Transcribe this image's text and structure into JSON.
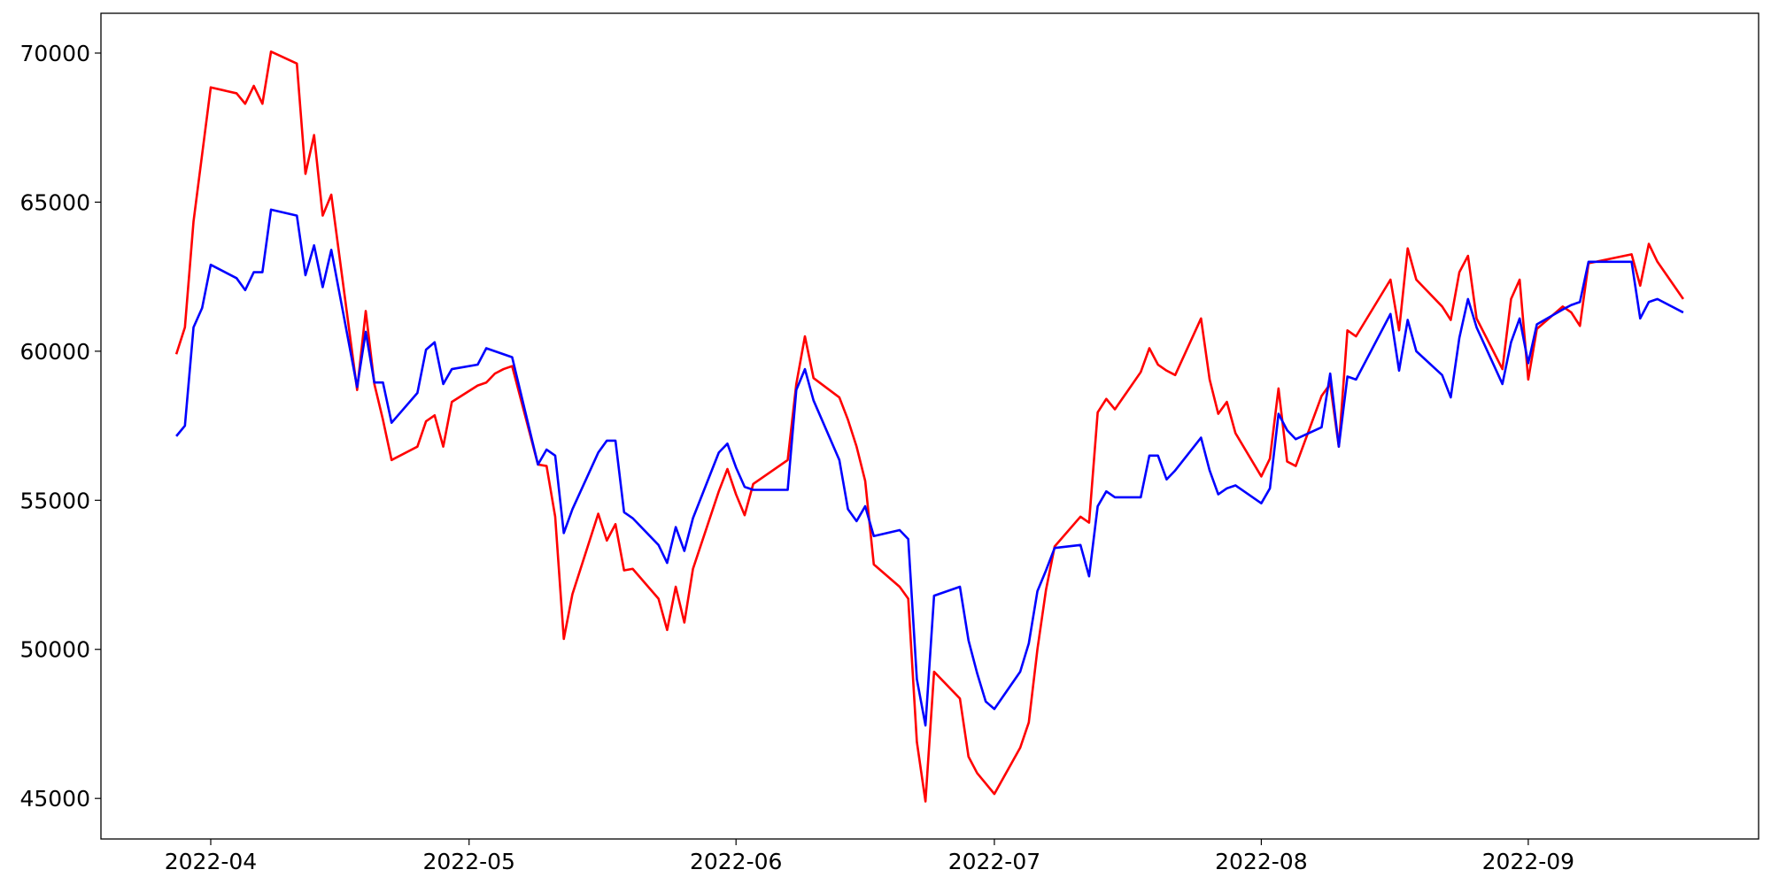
{
  "chart_data": {
    "type": "line",
    "x": [
      "2022-03-28",
      "2022-03-29",
      "2022-03-30",
      "2022-03-31",
      "2022-04-01",
      "2022-04-04",
      "2022-04-05",
      "2022-04-06",
      "2022-04-07",
      "2022-04-08",
      "2022-04-11",
      "2022-04-12",
      "2022-04-13",
      "2022-04-14",
      "2022-04-15",
      "2022-04-18",
      "2022-04-19",
      "2022-04-20",
      "2022-04-21",
      "2022-04-22",
      "2022-04-25",
      "2022-04-26",
      "2022-04-27",
      "2022-04-28",
      "2022-04-29",
      "2022-05-02",
      "2022-05-03",
      "2022-05-04",
      "2022-05-05",
      "2022-05-06",
      "2022-05-09",
      "2022-05-10",
      "2022-05-11",
      "2022-05-12",
      "2022-05-13",
      "2022-05-16",
      "2022-05-17",
      "2022-05-18",
      "2022-05-19",
      "2022-05-20",
      "2022-05-23",
      "2022-05-24",
      "2022-05-25",
      "2022-05-26",
      "2022-05-27",
      "2022-05-30",
      "2022-05-31",
      "2022-06-01",
      "2022-06-02",
      "2022-06-03",
      "2022-06-07",
      "2022-06-08",
      "2022-06-09",
      "2022-06-10",
      "2022-06-13",
      "2022-06-14",
      "2022-06-15",
      "2022-06-16",
      "2022-06-17",
      "2022-06-20",
      "2022-06-21",
      "2022-06-22",
      "2022-06-23",
      "2022-06-24",
      "2022-06-27",
      "2022-06-28",
      "2022-06-29",
      "2022-06-30",
      "2022-07-01",
      "2022-07-04",
      "2022-07-05",
      "2022-07-06",
      "2022-07-07",
      "2022-07-08",
      "2022-07-11",
      "2022-07-12",
      "2022-07-13",
      "2022-07-14",
      "2022-07-15",
      "2022-07-18",
      "2022-07-19",
      "2022-07-20",
      "2022-07-21",
      "2022-07-22",
      "2022-07-25",
      "2022-07-26",
      "2022-07-27",
      "2022-07-28",
      "2022-07-29",
      "2022-08-01",
      "2022-08-02",
      "2022-08-03",
      "2022-08-04",
      "2022-08-05",
      "2022-08-08",
      "2022-08-09",
      "2022-08-10",
      "2022-08-11",
      "2022-08-12",
      "2022-08-16",
      "2022-08-17",
      "2022-08-18",
      "2022-08-19",
      "2022-08-22",
      "2022-08-23",
      "2022-08-24",
      "2022-08-25",
      "2022-08-26",
      "2022-08-29",
      "2022-08-30",
      "2022-08-31",
      "2022-09-01",
      "2022-09-02",
      "2022-09-05",
      "2022-09-06",
      "2022-09-07",
      "2022-09-08",
      "2022-09-13",
      "2022-09-14",
      "2022-09-15",
      "2022-09-16",
      "2022-09-19"
    ],
    "series": [
      {
        "color": "#ff0000",
        "values": [
          59900,
          60800,
          64350,
          66600,
          68850,
          68650,
          68300,
          68900,
          68300,
          70050,
          69650,
          65950,
          67250,
          64550,
          65250,
          58700,
          61350,
          58900,
          57700,
          56350,
          56800,
          57650,
          57850,
          56800,
          58300,
          58850,
          58950,
          59250,
          59400,
          59500,
          56200,
          56150,
          54450,
          50350,
          51850,
          54550,
          53650,
          54200,
          52650,
          52700,
          51700,
          50650,
          52100,
          50900,
          52700,
          55300,
          56050,
          55200,
          54500,
          55550,
          56350,
          58900,
          60500,
          59100,
          58450,
          57700,
          56800,
          55650,
          52850,
          52100,
          51700,
          46900,
          44900,
          49250,
          48350,
          46400,
          45850,
          45500,
          45150,
          46700,
          47550,
          50000,
          52000,
          53450,
          54450,
          54250,
          57950,
          58400,
          58050,
          59300,
          60100,
          59550,
          59350,
          59200,
          61100,
          59050,
          57900,
          58300,
          57250,
          55800,
          56400,
          58750,
          56300,
          56150,
          58500,
          58900,
          56800,
          60700,
          60500,
          62400,
          60700,
          63450,
          62400,
          61500,
          61050,
          62650,
          63200,
          61100,
          59400,
          61750,
          62400,
          59050,
          60750,
          61500,
          61300,
          60850,
          62950,
          63250,
          62200,
          63600,
          63000,
          61750
        ]
      },
      {
        "color": "#0000ff",
        "values": [
          57150,
          57500,
          60800,
          61450,
          62900,
          62450,
          62050,
          62650,
          62650,
          64750,
          64550,
          62550,
          63550,
          62150,
          63400,
          58800,
          60650,
          58950,
          58950,
          57600,
          58600,
          60050,
          60300,
          58900,
          59400,
          59550,
          60100,
          60000,
          59900,
          59800,
          56200,
          56700,
          56500,
          53900,
          54700,
          56600,
          57000,
          57000,
          54600,
          54400,
          53500,
          52900,
          54100,
          53300,
          54400,
          56600,
          56900,
          56100,
          55450,
          55350,
          55350,
          58700,
          59400,
          58350,
          56350,
          54700,
          54300,
          54800,
          53800,
          54000,
          53700,
          49000,
          47450,
          51800,
          52100,
          50300,
          49200,
          48250,
          48000,
          49250,
          50200,
          51950,
          52650,
          53400,
          53500,
          52450,
          54800,
          55300,
          55100,
          55100,
          56500,
          56500,
          55700,
          56000,
          57100,
          56000,
          55200,
          55400,
          55500,
          54900,
          55400,
          57900,
          57350,
          57050,
          57450,
          59250,
          56800,
          59150,
          59050,
          61250,
          59350,
          61050,
          60000,
          59200,
          58450,
          60450,
          61750,
          60800,
          58900,
          60300,
          61100,
          59600,
          60900,
          61400,
          61550,
          61650,
          63000,
          63000,
          61100,
          61650,
          61750,
          61300
        ]
      }
    ],
    "xlim": [
      "2022-03-19T06:00:00Z",
      "2022-09-27T18:00:00Z"
    ],
    "xticks": [
      {
        "value": "2022-04-01",
        "label": "2022-04"
      },
      {
        "value": "2022-05-01",
        "label": "2022-05"
      },
      {
        "value": "2022-06-01",
        "label": "2022-06"
      },
      {
        "value": "2022-07-01",
        "label": "2022-07"
      },
      {
        "value": "2022-08-01",
        "label": "2022-08"
      },
      {
        "value": "2022-09-01",
        "label": "2022-09"
      }
    ],
    "ylim": [
      43640,
      71335
    ],
    "yticks": [
      45000,
      50000,
      55000,
      60000,
      65000,
      70000
    ],
    "grid": false
  }
}
